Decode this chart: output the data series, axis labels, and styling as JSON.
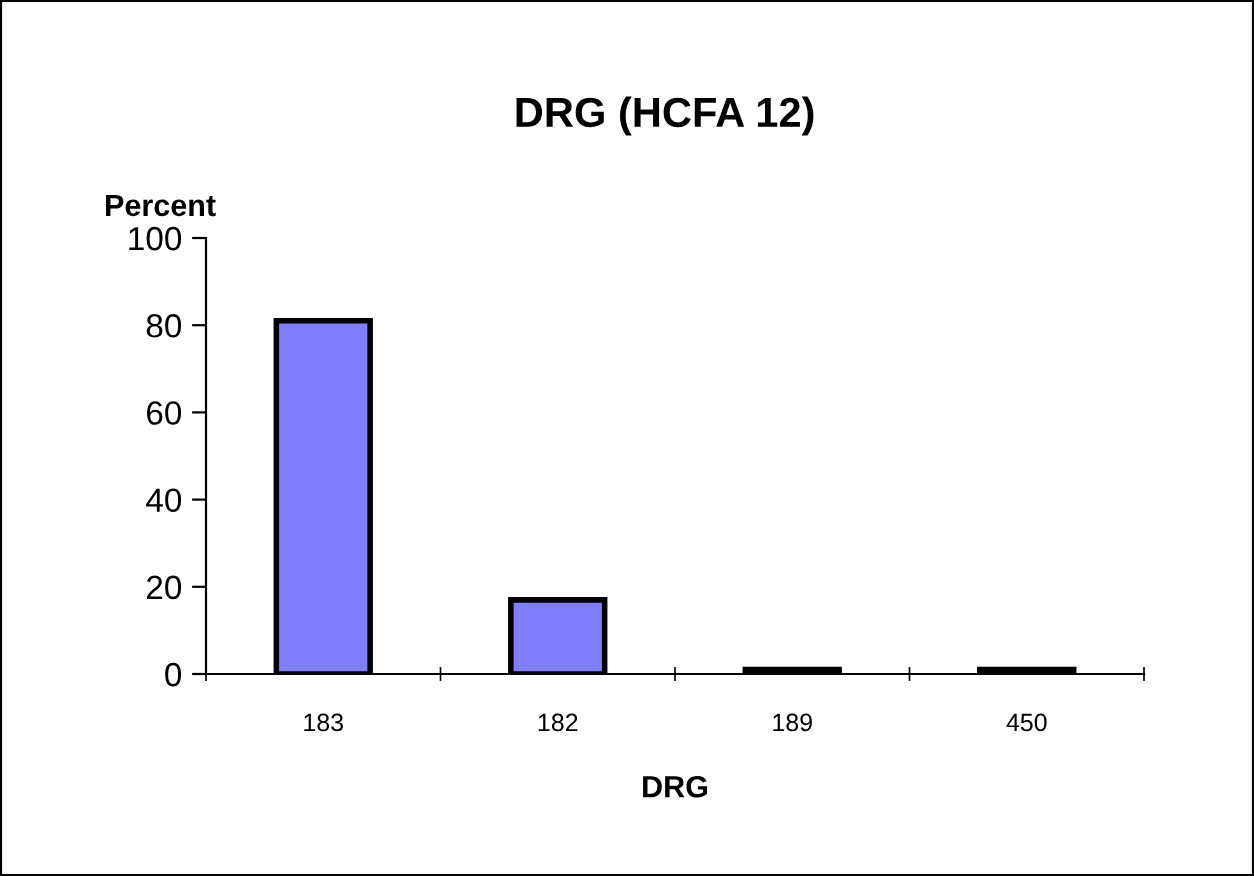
{
  "chart_data": {
    "type": "bar",
    "title": "DRG (HCFA 12)",
    "ylabel": "Percent",
    "xlabel": "DRG",
    "categories": [
      "183",
      "182",
      "189",
      "450"
    ],
    "values": [
      81,
      17,
      1,
      1
    ],
    "color": "#8080ff",
    "ylim": [
      0,
      100
    ],
    "yticks": [
      0,
      20,
      40,
      60,
      80,
      100
    ],
    "grid": false,
    "legend": false
  }
}
